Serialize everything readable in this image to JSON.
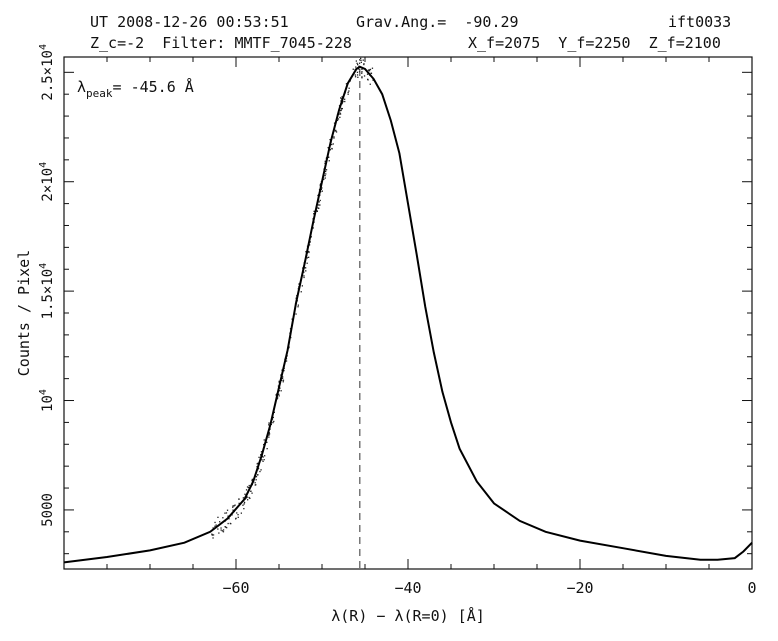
{
  "header": {
    "line1_left": "UT 2008-12-26 00:53:51",
    "line1_mid": "Grav.Ang.=  -90.29",
    "line1_right": "ift0033",
    "line2_left": "Z_c=-2  Filter: MMTF_7045-228",
    "line2_right": "X_f=2075  Y_f=2250  Z_f=2100"
  },
  "annotation": {
    "lambda": "λ",
    "sub": "peak",
    "value": "= -45.6 Å"
  },
  "chart_data": {
    "type": "line",
    "xlabel": "λ(R) − λ(R=0)  [Å]",
    "ylabel": "Counts / Pixel",
    "xlim": [
      -80,
      0
    ],
    "ylim": [
      2300,
      25700
    ],
    "x_ticks": [
      {
        "value": -60,
        "label": "−60"
      },
      {
        "value": -40,
        "label": "−40"
      },
      {
        "value": -20,
        "label": "−20"
      },
      {
        "value": 0,
        "label": "0"
      }
    ],
    "y_ticks": [
      {
        "value": 5000,
        "mant": "5000",
        "exp": ""
      },
      {
        "value": 10000,
        "mant": "10",
        "exp": "4"
      },
      {
        "value": 15000,
        "mant": "1.5×10",
        "exp": "4"
      },
      {
        "value": 20000,
        "mant": "2×10",
        "exp": "4"
      },
      {
        "value": 25000,
        "mant": "2.5×10",
        "exp": "4"
      }
    ],
    "peak_x": -45.6,
    "grid": false,
    "series": [
      {
        "style": "solid",
        "x": [
          -80,
          -75,
          -70,
          -66,
          -63,
          -61,
          -59,
          -58,
          -57,
          -56,
          -55,
          -54,
          -53,
          -52,
          -51,
          -50,
          -49,
          -48,
          -47,
          -46,
          -45.6,
          -45,
          -44,
          -43,
          -42,
          -41,
          -40,
          -39,
          -38,
          -37,
          -36,
          -35,
          -34,
          -32,
          -30,
          -27,
          -24,
          -20,
          -15,
          -10,
          -6,
          -4,
          -2,
          -1,
          0
        ],
        "y": [
          2600,
          2850,
          3150,
          3500,
          4000,
          4600,
          5500,
          6300,
          7500,
          8900,
          10600,
          12300,
          14500,
          16300,
          18200,
          20000,
          21800,
          23300,
          24500,
          25150,
          25250,
          25150,
          24700,
          24000,
          22800,
          21300,
          19000,
          16700,
          14300,
          12200,
          10400,
          9000,
          7800,
          6300,
          5300,
          4500,
          4000,
          3600,
          3250,
          2900,
          2720,
          2720,
          2800,
          3100,
          3500
        ]
      }
    ],
    "scatter_x_range": [
      -63,
      -44
    ],
    "scatter_count": 340
  }
}
